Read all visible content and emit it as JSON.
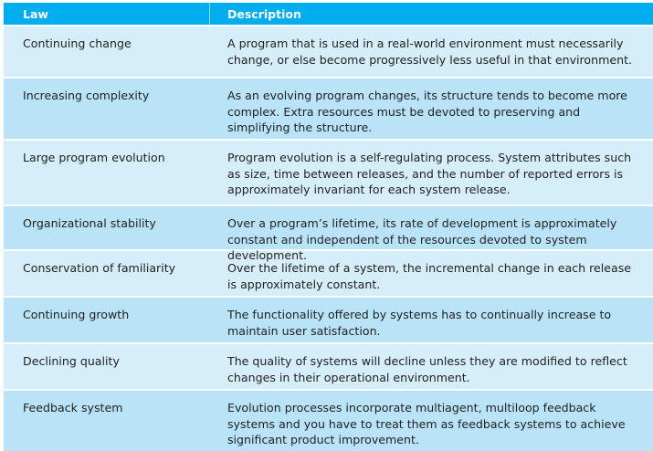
{
  "table": {
    "headers": [
      "Law",
      "Description"
    ],
    "rows": [
      {
        "law": "Continuing change",
        "description": "A program that is used in a real-world environment must necessarily change, or else become progressively less useful in that environment."
      },
      {
        "law": "Increasing complexity",
        "description": "As an evolving program changes, its structure tends to become more complex. Extra resources must be devoted to preserving and simplifying the structure."
      },
      {
        "law": "Large program evolution",
        "description": "Program evolution is a self-regulating process. System attributes such as size, time between releases, and the number of reported errors is approximately invariant for each system release."
      },
      {
        "law": "Organizational stability",
        "description": "Over a program’s lifetime, its rate of development is approximately constant and independent of the resources devoted to system development."
      },
      {
        "law": "Conservation of familiarity",
        "description": "Over the lifetime of a system, the incremental change in each release is approximately constant."
      },
      {
        "law": "Continuing growth",
        "description": "The functionality offered by systems has to continually increase to maintain user satisfaction."
      },
      {
        "law": "Declining quality",
        "description": "The quality of systems will decline unless they are modified to reflect changes in their operational environment."
      },
      {
        "law": "Feedback system",
        "description": "Evolution processes incorporate multiagent, multiloop feedback systems and you have to treat them as feedback systems to achieve significant product improvement."
      }
    ]
  }
}
